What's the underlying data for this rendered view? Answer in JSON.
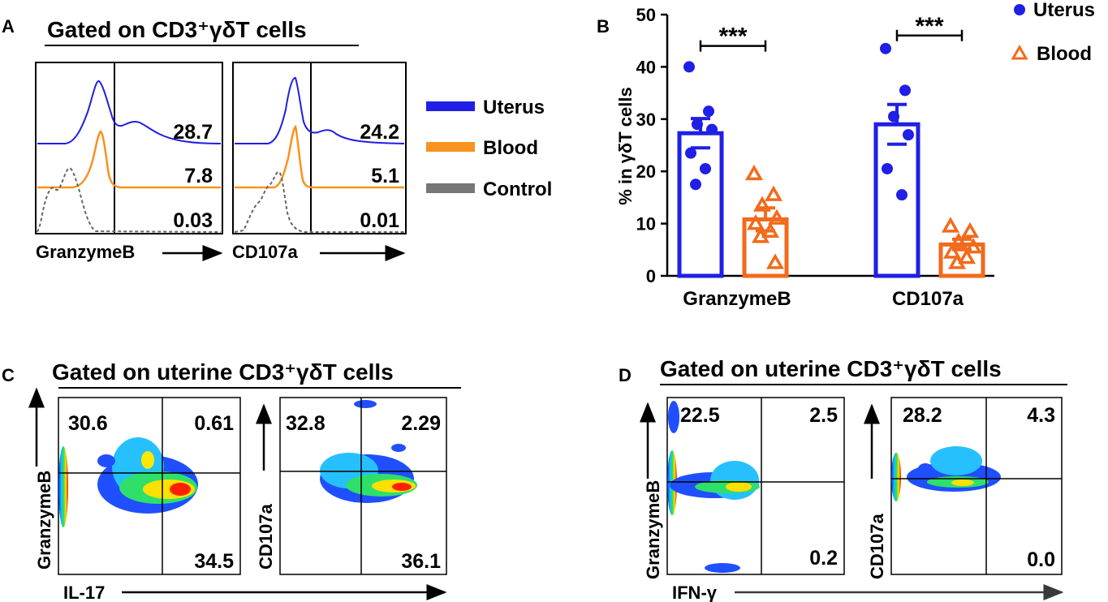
{
  "panel_letters": {
    "a": "A",
    "b": "B",
    "c": "C",
    "d": "D"
  },
  "colors": {
    "uterus": "#1f1fe6",
    "blood": "#f7931e",
    "blood_bar": "#f26a1b",
    "control": "#777777",
    "axis": "#000000"
  },
  "panel_a": {
    "title": "Gated on CD3⁺γδT cells",
    "legend": [
      {
        "label": "Uterus",
        "color": "#1f1fe6"
      },
      {
        "label": "Blood",
        "color": "#f7931e"
      },
      {
        "label": "Control",
        "color": "#777777"
      }
    ],
    "plots": [
      {
        "marker": "GranzymeB",
        "values": {
          "uterus": "28.7",
          "blood": "7.8",
          "control": "0.03"
        }
      },
      {
        "marker": "CD107a",
        "values": {
          "uterus": "24.2",
          "blood": "5.1",
          "control": "0.01"
        }
      }
    ]
  },
  "chart_data": [
    {
      "type": "bar",
      "panel": "B",
      "title": "",
      "categories": [
        "GranzymeB",
        "CD107a"
      ],
      "ylabel": "% in γδT cells",
      "ylim": [
        0,
        50
      ],
      "yticks": [
        0,
        10,
        20,
        30,
        40,
        50
      ],
      "legend": [
        "Uterus",
        "Blood"
      ],
      "legend_position": "top-right",
      "series": [
        {
          "name": "Uterus",
          "marker": "circle",
          "means": [
            27.3,
            29.0
          ],
          "sem": [
            2.8,
            3.8
          ],
          "points": [
            [
              40,
              31.5,
              29,
              28,
              23.5,
              20.5,
              17.5
            ],
            [
              43.5,
              35.5,
              30.5,
              27,
              20.5,
              15.5
            ]
          ]
        },
        {
          "name": "Blood",
          "marker": "triangle",
          "means": [
            10.8,
            6.0
          ],
          "sem": [
            2.2,
            1.0
          ],
          "points": [
            [
              19.5,
              15.5,
              13.5,
              11,
              10,
              8.5,
              7.5,
              2.5
            ],
            [
              9.5,
              8.5,
              6.5,
              5.5,
              4.5,
              3.5,
              2.5
            ]
          ]
        }
      ],
      "annotations": [
        {
          "text": "***",
          "category": "GranzymeB",
          "y": 44
        },
        {
          "text": "***",
          "category": "CD107a",
          "y": 46
        }
      ]
    },
    {
      "type": "heatmap",
      "panel": "C",
      "title": "Gated on uterine CD3⁺γδT cells",
      "xlabel": "IL-17",
      "plots": [
        {
          "ylabel": "GranzymeB",
          "quadrants": {
            "upper_left": "30.6",
            "upper_right": "0.61",
            "lower_right": "34.5"
          }
        },
        {
          "ylabel": "CD107a",
          "quadrants": {
            "upper_left": "32.8",
            "upper_right": "2.29",
            "lower_right": "36.1"
          }
        }
      ]
    },
    {
      "type": "heatmap",
      "panel": "D",
      "title": "Gated on uterine CD3⁺γδT cells",
      "xlabel": "IFN-γ",
      "plots": [
        {
          "ylabel": "GranzymeB",
          "quadrants": {
            "upper_left": "22.5",
            "upper_right": "2.5",
            "lower_right": "0.2"
          }
        },
        {
          "ylabel": "CD107a",
          "quadrants": {
            "upper_left": "28.2",
            "upper_right": "4.3",
            "lower_right": "0.0"
          }
        }
      ]
    }
  ]
}
